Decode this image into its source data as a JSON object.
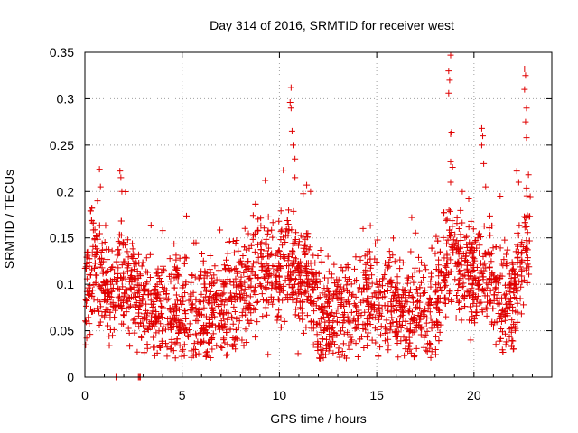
{
  "chart_data": {
    "type": "scatter",
    "title": "Day 314 of 2016, SRMTID for receiver west",
    "xlabel": "GPS time / hours",
    "ylabel": "SRMTID / TECUs",
    "xlim": [
      0,
      24
    ],
    "ylim": [
      0,
      0.35
    ],
    "xticks": [
      0,
      5,
      10,
      15,
      20
    ],
    "yticks": [
      0,
      0.05,
      0.1,
      0.15,
      0.2,
      0.25,
      0.3,
      0.35
    ],
    "xtick_labels": [
      "0",
      "5",
      "10",
      "15",
      "20"
    ],
    "ytick_labels": [
      "0",
      "0.05",
      "0.1",
      "0.15",
      "0.2",
      "0.25",
      "0.3",
      "0.35"
    ],
    "grid": true,
    "marker": "+",
    "series_color": "#e00000",
    "x_range_of_points": [
      0,
      22.9
    ],
    "approx_point_count": 2500,
    "baseline": [
      [
        0,
        0.09
      ],
      [
        0.5,
        0.12
      ],
      [
        1,
        0.1
      ],
      [
        1.5,
        0.09
      ],
      [
        2,
        0.1
      ],
      [
        2.5,
        0.1
      ],
      [
        3,
        0.08
      ],
      [
        4,
        0.075
      ],
      [
        5,
        0.07
      ],
      [
        6,
        0.07
      ],
      [
        7,
        0.075
      ],
      [
        8,
        0.09
      ],
      [
        9,
        0.115
      ],
      [
        10,
        0.11
      ],
      [
        10.6,
        0.13
      ],
      [
        11,
        0.1
      ],
      [
        11.5,
        0.11
      ],
      [
        12,
        0.06
      ],
      [
        13,
        0.07
      ],
      [
        14,
        0.08
      ],
      [
        15,
        0.09
      ],
      [
        16,
        0.07
      ],
      [
        17,
        0.07
      ],
      [
        18,
        0.075
      ],
      [
        18.7,
        0.13
      ],
      [
        19.5,
        0.12
      ],
      [
        20,
        0.11
      ],
      [
        20.5,
        0.12
      ],
      [
        21,
        0.09
      ],
      [
        21.5,
        0.09
      ],
      [
        22,
        0.08
      ],
      [
        22.5,
        0.13
      ],
      [
        22.9,
        0.15
      ]
    ],
    "spread": 0.028,
    "peaks": [
      {
        "x": 0.75,
        "y": 0.224
      },
      {
        "x": 0.8,
        "y": 0.205
      },
      {
        "x": 0.65,
        "y": 0.19
      },
      {
        "x": 1.8,
        "y": 0.222
      },
      {
        "x": 1.85,
        "y": 0.215
      },
      {
        "x": 1.9,
        "y": 0.2
      },
      {
        "x": 2.2,
        "y": 0.148
      },
      {
        "x": 2.5,
        "y": 0.132
      },
      {
        "x": 10.6,
        "y": 0.312
      },
      {
        "x": 10.55,
        "y": 0.296
      },
      {
        "x": 10.6,
        "y": 0.29
      },
      {
        "x": 10.65,
        "y": 0.265
      },
      {
        "x": 10.7,
        "y": 0.25
      },
      {
        "x": 10.8,
        "y": 0.235
      },
      {
        "x": 10.2,
        "y": 0.223
      },
      {
        "x": 10.8,
        "y": 0.215
      },
      {
        "x": 11.4,
        "y": 0.207
      },
      {
        "x": 11.6,
        "y": 0.2
      },
      {
        "x": 14.3,
        "y": 0.16
      },
      {
        "x": 16.8,
        "y": 0.172
      },
      {
        "x": 18.8,
        "y": 0.347
      },
      {
        "x": 18.7,
        "y": 0.33
      },
      {
        "x": 18.75,
        "y": 0.32
      },
      {
        "x": 18.7,
        "y": 0.306
      },
      {
        "x": 18.85,
        "y": 0.264
      },
      {
        "x": 18.8,
        "y": 0.262
      },
      {
        "x": 18.8,
        "y": 0.232
      },
      {
        "x": 18.9,
        "y": 0.226
      },
      {
        "x": 18.8,
        "y": 0.21
      },
      {
        "x": 20.4,
        "y": 0.268
      },
      {
        "x": 20.45,
        "y": 0.26
      },
      {
        "x": 20.4,
        "y": 0.25
      },
      {
        "x": 20.5,
        "y": 0.23
      },
      {
        "x": 20.6,
        "y": 0.205
      },
      {
        "x": 19.4,
        "y": 0.2
      },
      {
        "x": 22.6,
        "y": 0.332
      },
      {
        "x": 22.65,
        "y": 0.325
      },
      {
        "x": 22.6,
        "y": 0.31
      },
      {
        "x": 22.7,
        "y": 0.29
      },
      {
        "x": 22.65,
        "y": 0.275
      },
      {
        "x": 22.7,
        "y": 0.258
      },
      {
        "x": 22.2,
        "y": 0.222
      },
      {
        "x": 22.8,
        "y": 0.218
      },
      {
        "x": 22.3,
        "y": 0.21
      }
    ],
    "low_points": [
      {
        "x": 1.6,
        "y": 0.0
      },
      {
        "x": 2.75,
        "y": 0.0
      },
      {
        "x": 2.8,
        "y": 0.0
      },
      {
        "x": 2.85,
        "y": 0.0
      },
      {
        "x": 12.1,
        "y": 0.02
      },
      {
        "x": 12.15,
        "y": 0.025
      },
      {
        "x": 5.6,
        "y": 0.03
      },
      {
        "x": 16.6,
        "y": 0.028
      }
    ]
  }
}
